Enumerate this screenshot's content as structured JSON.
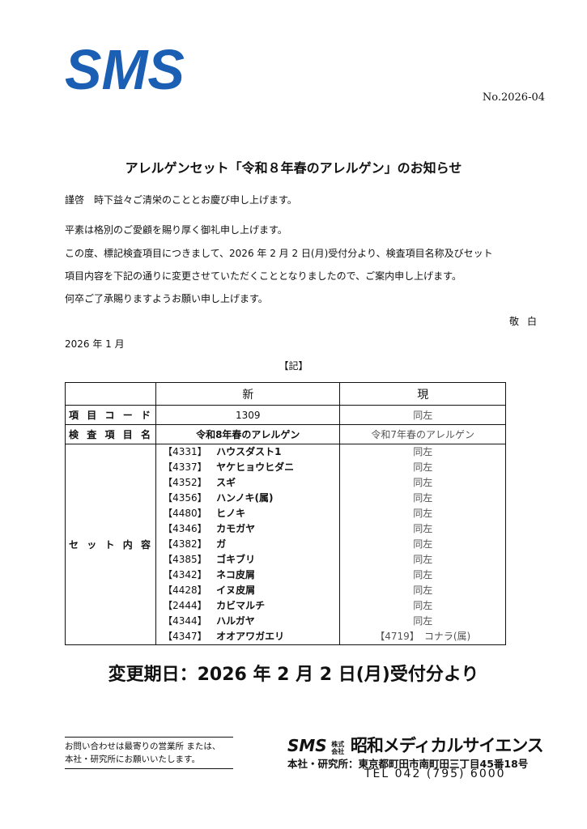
{
  "logo": {
    "text": "SMS",
    "color": "#1a5fb4"
  },
  "doc_number": "No.2026-04",
  "title": "アレルゲンセット「令和８年春のアレルゲン」のお知らせ",
  "body": [
    "謹啓　時下益々ご清栄のこととお慶び申し上げます。",
    "平素は格別のご愛顧を賜り厚く御礼申し上げます。",
    "この度、標記検査項目につきまして、2026 年 2 月 2 日(月)受付分より、検査項目名称及びセット",
    "項目内容を下記の通りに変更させていただくこととなりましたので、ご案内申し上げます。",
    "何卒ご了承賜りますようお願い申し上げます。"
  ],
  "closing": "敬白",
  "date": "2026 年 1 月",
  "ki": "【記】",
  "table": {
    "headers": {
      "new": "新",
      "current": "現"
    },
    "code_row": {
      "label": "項目コード",
      "new": "1309",
      "current": "同左"
    },
    "name_row": {
      "label": "検査項目名",
      "new": "令和8年春のアレルゲン",
      "current": "令和7年春のアレルゲン"
    },
    "set_row": {
      "label": "セット内容",
      "items": [
        {
          "code": "【4331】",
          "name": "ハウスダスト1",
          "current": "同左"
        },
        {
          "code": "【4337】",
          "name": "ヤケヒョウヒダニ",
          "current": "同左"
        },
        {
          "code": "【4352】",
          "name": "スギ",
          "current": "同左"
        },
        {
          "code": "【4356】",
          "name": "ハンノキ(属)",
          "current": "同左"
        },
        {
          "code": "【4480】",
          "name": "ヒノキ",
          "current": "同左"
        },
        {
          "code": "【4346】",
          "name": "カモガヤ",
          "current": "同左"
        },
        {
          "code": "【4382】",
          "name": "ガ",
          "current": "同左"
        },
        {
          "code": "【4385】",
          "name": "ゴキブリ",
          "current": "同左"
        },
        {
          "code": "【4342】",
          "name": "ネコ皮屑",
          "current": "同左"
        },
        {
          "code": "【4428】",
          "name": "イヌ皮屑",
          "current": "同左"
        },
        {
          "code": "【2444】",
          "name": "カビマルチ",
          "current": "同左"
        },
        {
          "code": "【4344】",
          "name": "ハルガヤ",
          "current": "同左"
        },
        {
          "code": "【4347】",
          "name": "オオアワガエリ",
          "current": "【4719】　コナラ(属)"
        }
      ]
    }
  },
  "effective_date": "変更期日：2026 年 2 月 2 日(月)受付分より",
  "contact": {
    "line1": "お問い合わせは最寄りの営業所 または、",
    "line2": "本社・研究所にお願いいたします。"
  },
  "company": {
    "logo": "SMS",
    "kabushiki": "株式会社",
    "name": "昭和メディカルサイエンス",
    "address": "本社・研究所：東京都町田市南町田三丁目45番18号",
    "tel": "TEL 042 (795) 6000"
  }
}
